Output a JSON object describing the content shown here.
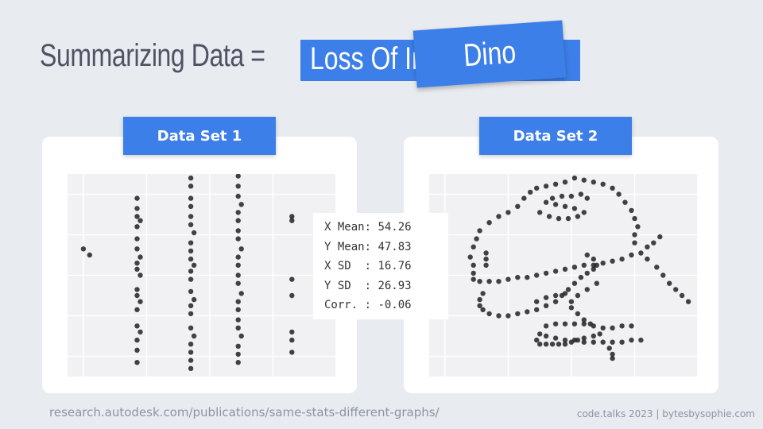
{
  "title": {
    "prefix": "Summarizing Data =",
    "box_text": "Loss Of Information",
    "overlay_card": "Dino"
  },
  "panels": [
    {
      "label": "Data Set 1"
    },
    {
      "label": "Data Set 2"
    }
  ],
  "stats": [
    {
      "label": "X Mean",
      "value": "54.26"
    },
    {
      "label": "Y Mean",
      "value": "47.83"
    },
    {
      "label": "X SD  ",
      "value": "16.76"
    },
    {
      "label": "Y SD  ",
      "value": "26.93"
    },
    {
      "label": "Corr. ",
      "value": "-0.06"
    }
  ],
  "footer": {
    "source": "research.autodesk.com/publications/same-stats-different-graphs/",
    "credit": "code.talks 2023 | bytesbysophie.com"
  },
  "colors": {
    "accent": "#3d7fe8",
    "background": "#e8ebf0",
    "points": "#222222"
  },
  "chart_data": [
    {
      "type": "scatter",
      "name": "Data Set 1",
      "xlim": [
        15,
        100
      ],
      "ylim": [
        0,
        100
      ],
      "grid": true,
      "points": [
        [
          20,
          63
        ],
        [
          22,
          60
        ],
        [
          37,
          88
        ],
        [
          37,
          83
        ],
        [
          37,
          79
        ],
        [
          38,
          77
        ],
        [
          37,
          74
        ],
        [
          37,
          68
        ],
        [
          37,
          63
        ],
        [
          38,
          59
        ],
        [
          37,
          56
        ],
        [
          37,
          53
        ],
        [
          38,
          50
        ],
        [
          37,
          43
        ],
        [
          37,
          40
        ],
        [
          38,
          37
        ],
        [
          37,
          33
        ],
        [
          37,
          25
        ],
        [
          38,
          22
        ],
        [
          37,
          18
        ],
        [
          37,
          13
        ],
        [
          37,
          7
        ],
        [
          54,
          98
        ],
        [
          54,
          94
        ],
        [
          54,
          88
        ],
        [
          54,
          84
        ],
        [
          54,
          79
        ],
        [
          54,
          75
        ],
        [
          55,
          71
        ],
        [
          54,
          66
        ],
        [
          54,
          62
        ],
        [
          54,
          58
        ],
        [
          55,
          55
        ],
        [
          54,
          52
        ],
        [
          54,
          48
        ],
        [
          54,
          42
        ],
        [
          55,
          38
        ],
        [
          54,
          35
        ],
        [
          54,
          31
        ],
        [
          54,
          24
        ],
        [
          55,
          20
        ],
        [
          54,
          16
        ],
        [
          54,
          12
        ],
        [
          54,
          8
        ],
        [
          54,
          4
        ],
        [
          69,
          99
        ],
        [
          69,
          94
        ],
        [
          69,
          89
        ],
        [
          70,
          85
        ],
        [
          69,
          81
        ],
        [
          69,
          77
        ],
        [
          69,
          72
        ],
        [
          69,
          68
        ],
        [
          70,
          63
        ],
        [
          69,
          59
        ],
        [
          69,
          55
        ],
        [
          69,
          50
        ],
        [
          69,
          46
        ],
        [
          70,
          41
        ],
        [
          69,
          37
        ],
        [
          69,
          33
        ],
        [
          69,
          28
        ],
        [
          69,
          24
        ],
        [
          70,
          20
        ],
        [
          69,
          15
        ],
        [
          69,
          11
        ],
        [
          69,
          7
        ],
        [
          86,
          79
        ],
        [
          86,
          77
        ],
        [
          86,
          48
        ],
        [
          86,
          40
        ],
        [
          86,
          22
        ],
        [
          86,
          18
        ],
        [
          86,
          12
        ]
      ]
    },
    {
      "type": "scatter",
      "name": "Data Set 2",
      "xlim": [
        15,
        100
      ],
      "ylim": [
        0,
        100
      ],
      "grid": true,
      "points": [
        [
          31,
          72
        ],
        [
          30,
          68
        ],
        [
          29,
          64
        ],
        [
          28,
          59
        ],
        [
          29,
          55
        ],
        [
          29,
          51
        ],
        [
          29,
          48
        ],
        [
          33,
          55
        ],
        [
          33,
          58
        ],
        [
          33,
          61
        ],
        [
          31,
          47
        ],
        [
          34,
          47
        ],
        [
          37,
          47
        ],
        [
          40,
          48
        ],
        [
          43,
          49
        ],
        [
          46,
          49
        ],
        [
          49,
          50
        ],
        [
          52,
          51
        ],
        [
          55,
          52
        ],
        [
          58,
          53
        ],
        [
          61,
          54
        ],
        [
          64,
          55
        ],
        [
          67,
          55
        ],
        [
          70,
          56
        ],
        [
          73,
          57
        ],
        [
          76,
          58
        ],
        [
          79,
          60
        ],
        [
          82,
          61
        ],
        [
          84,
          64
        ],
        [
          86,
          66
        ],
        [
          88,
          69
        ],
        [
          34,
          76
        ],
        [
          37,
          79
        ],
        [
          40,
          81
        ],
        [
          43,
          84
        ],
        [
          45,
          88
        ],
        [
          47,
          91
        ],
        [
          49,
          93
        ],
        [
          52,
          94
        ],
        [
          55,
          95
        ],
        [
          58,
          96
        ],
        [
          61,
          98
        ],
        [
          64,
          97
        ],
        [
          67,
          96
        ],
        [
          70,
          95
        ],
        [
          73,
          93
        ],
        [
          75,
          90
        ],
        [
          77,
          86
        ],
        [
          79,
          82
        ],
        [
          80,
          78
        ],
        [
          81,
          74
        ],
        [
          80,
          70
        ],
        [
          80,
          66
        ],
        [
          84,
          58
        ],
        [
          87,
          54
        ],
        [
          89,
          50
        ],
        [
          91,
          46
        ],
        [
          93,
          43
        ],
        [
          95,
          40
        ],
        [
          97,
          37
        ],
        [
          50,
          81
        ],
        [
          53,
          79
        ],
        [
          56,
          78
        ],
        [
          59,
          78
        ],
        [
          62,
          79
        ],
        [
          64,
          81
        ],
        [
          61,
          83
        ],
        [
          58,
          84
        ],
        [
          55,
          85
        ],
        [
          52,
          86
        ],
        [
          54,
          88
        ],
        [
          57,
          89
        ],
        [
          60,
          89
        ],
        [
          63,
          90
        ],
        [
          65,
          88
        ],
        [
          65,
          60
        ],
        [
          67,
          58
        ],
        [
          68,
          55
        ],
        [
          67,
          53
        ],
        [
          65,
          51
        ],
        [
          63,
          49
        ],
        [
          61,
          46
        ],
        [
          59,
          43
        ],
        [
          57,
          40
        ],
        [
          55,
          37
        ],
        [
          52,
          35
        ],
        [
          49,
          33
        ],
        [
          46,
          32
        ],
        [
          43,
          31
        ],
        [
          40,
          30
        ],
        [
          37,
          30
        ],
        [
          34,
          31
        ],
        [
          32,
          33
        ],
        [
          31,
          35
        ],
        [
          31,
          38
        ],
        [
          32,
          41
        ],
        [
          49,
          37
        ],
        [
          52,
          39
        ],
        [
          55,
          40
        ],
        [
          58,
          41
        ],
        [
          68,
          46
        ],
        [
          65,
          43
        ],
        [
          62,
          40
        ],
        [
          60,
          37
        ],
        [
          60,
          34
        ],
        [
          62,
          31
        ],
        [
          64,
          28
        ],
        [
          66,
          26
        ],
        [
          50,
          21
        ],
        [
          52,
          20
        ],
        [
          55,
          19
        ],
        [
          58,
          18
        ],
        [
          61,
          18
        ],
        [
          64,
          17
        ],
        [
          67,
          17
        ],
        [
          70,
          17
        ],
        [
          73,
          17
        ],
        [
          76,
          17
        ],
        [
          79,
          18
        ],
        [
          82,
          18
        ],
        [
          49,
          18
        ],
        [
          50,
          16
        ],
        [
          52,
          16
        ],
        [
          54,
          16
        ],
        [
          56,
          16
        ],
        [
          58,
          16
        ],
        [
          60,
          17
        ],
        [
          62,
          18
        ],
        [
          64,
          19
        ],
        [
          67,
          20
        ],
        [
          69,
          21
        ],
        [
          52,
          25
        ],
        [
          55,
          26
        ],
        [
          58,
          26
        ],
        [
          61,
          26
        ],
        [
          64,
          26
        ],
        [
          67,
          25
        ],
        [
          70,
          24
        ],
        [
          73,
          24
        ],
        [
          76,
          25
        ],
        [
          79,
          25
        ],
        [
          72,
          14
        ],
        [
          73,
          11
        ],
        [
          73,
          9
        ]
      ]
    }
  ]
}
